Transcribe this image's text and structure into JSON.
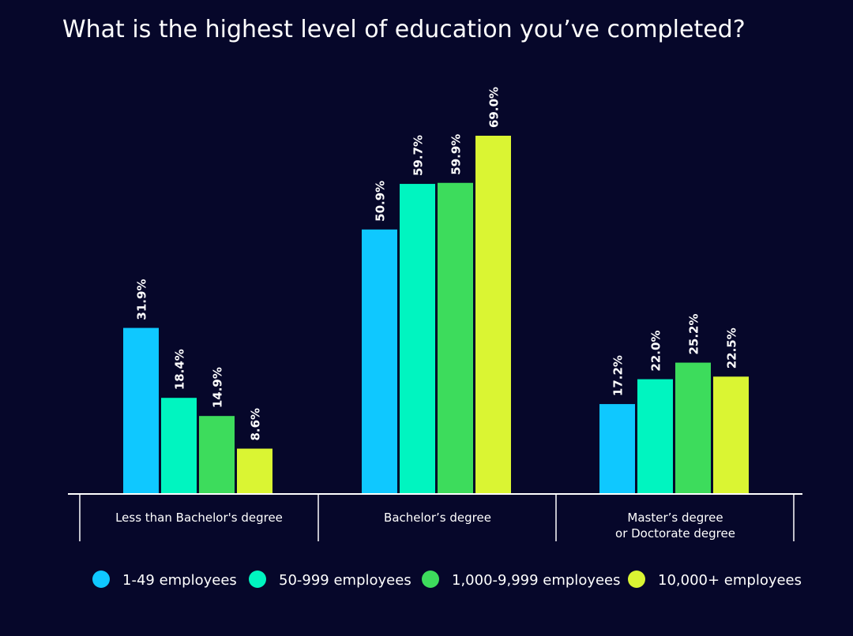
{
  "chart_data": {
    "type": "bar",
    "title": "What is the highest level of education you’ve completed?",
    "categories": [
      [
        "Less than Bachelor's degree"
      ],
      [
        "Bachelor’s degree"
      ],
      [
        "Master’s degree",
        "or Doctorate degree"
      ]
    ],
    "series": [
      {
        "name": "1-49 employees",
        "color": "#0fc8ff",
        "values": [
          31.9,
          50.9,
          17.2
        ],
        "labels": [
          "31.9%",
          "50.9%",
          "17.2%"
        ]
      },
      {
        "name": "50-999 employees",
        "color": "#00f5c0",
        "values": [
          18.4,
          59.7,
          22.0
        ],
        "labels": [
          "18.4%",
          "59.7%",
          "22.0%"
        ]
      },
      {
        "name": "1,000-9,999 employees",
        "color": "#3ddc5c",
        "values": [
          14.9,
          59.9,
          25.2
        ],
        "labels": [
          "14.9%",
          "59.9%",
          "25.2%"
        ]
      },
      {
        "name": "10,000+ employees",
        "color": "#daf533",
        "values": [
          8.6,
          69.0,
          22.5
        ],
        "labels": [
          "8.6%",
          "69.0%",
          "22.5%"
        ]
      }
    ],
    "ylim": [
      0,
      69.0
    ],
    "grid": false,
    "legend_position": "bottom",
    "xlabel": "",
    "ylabel": ""
  }
}
